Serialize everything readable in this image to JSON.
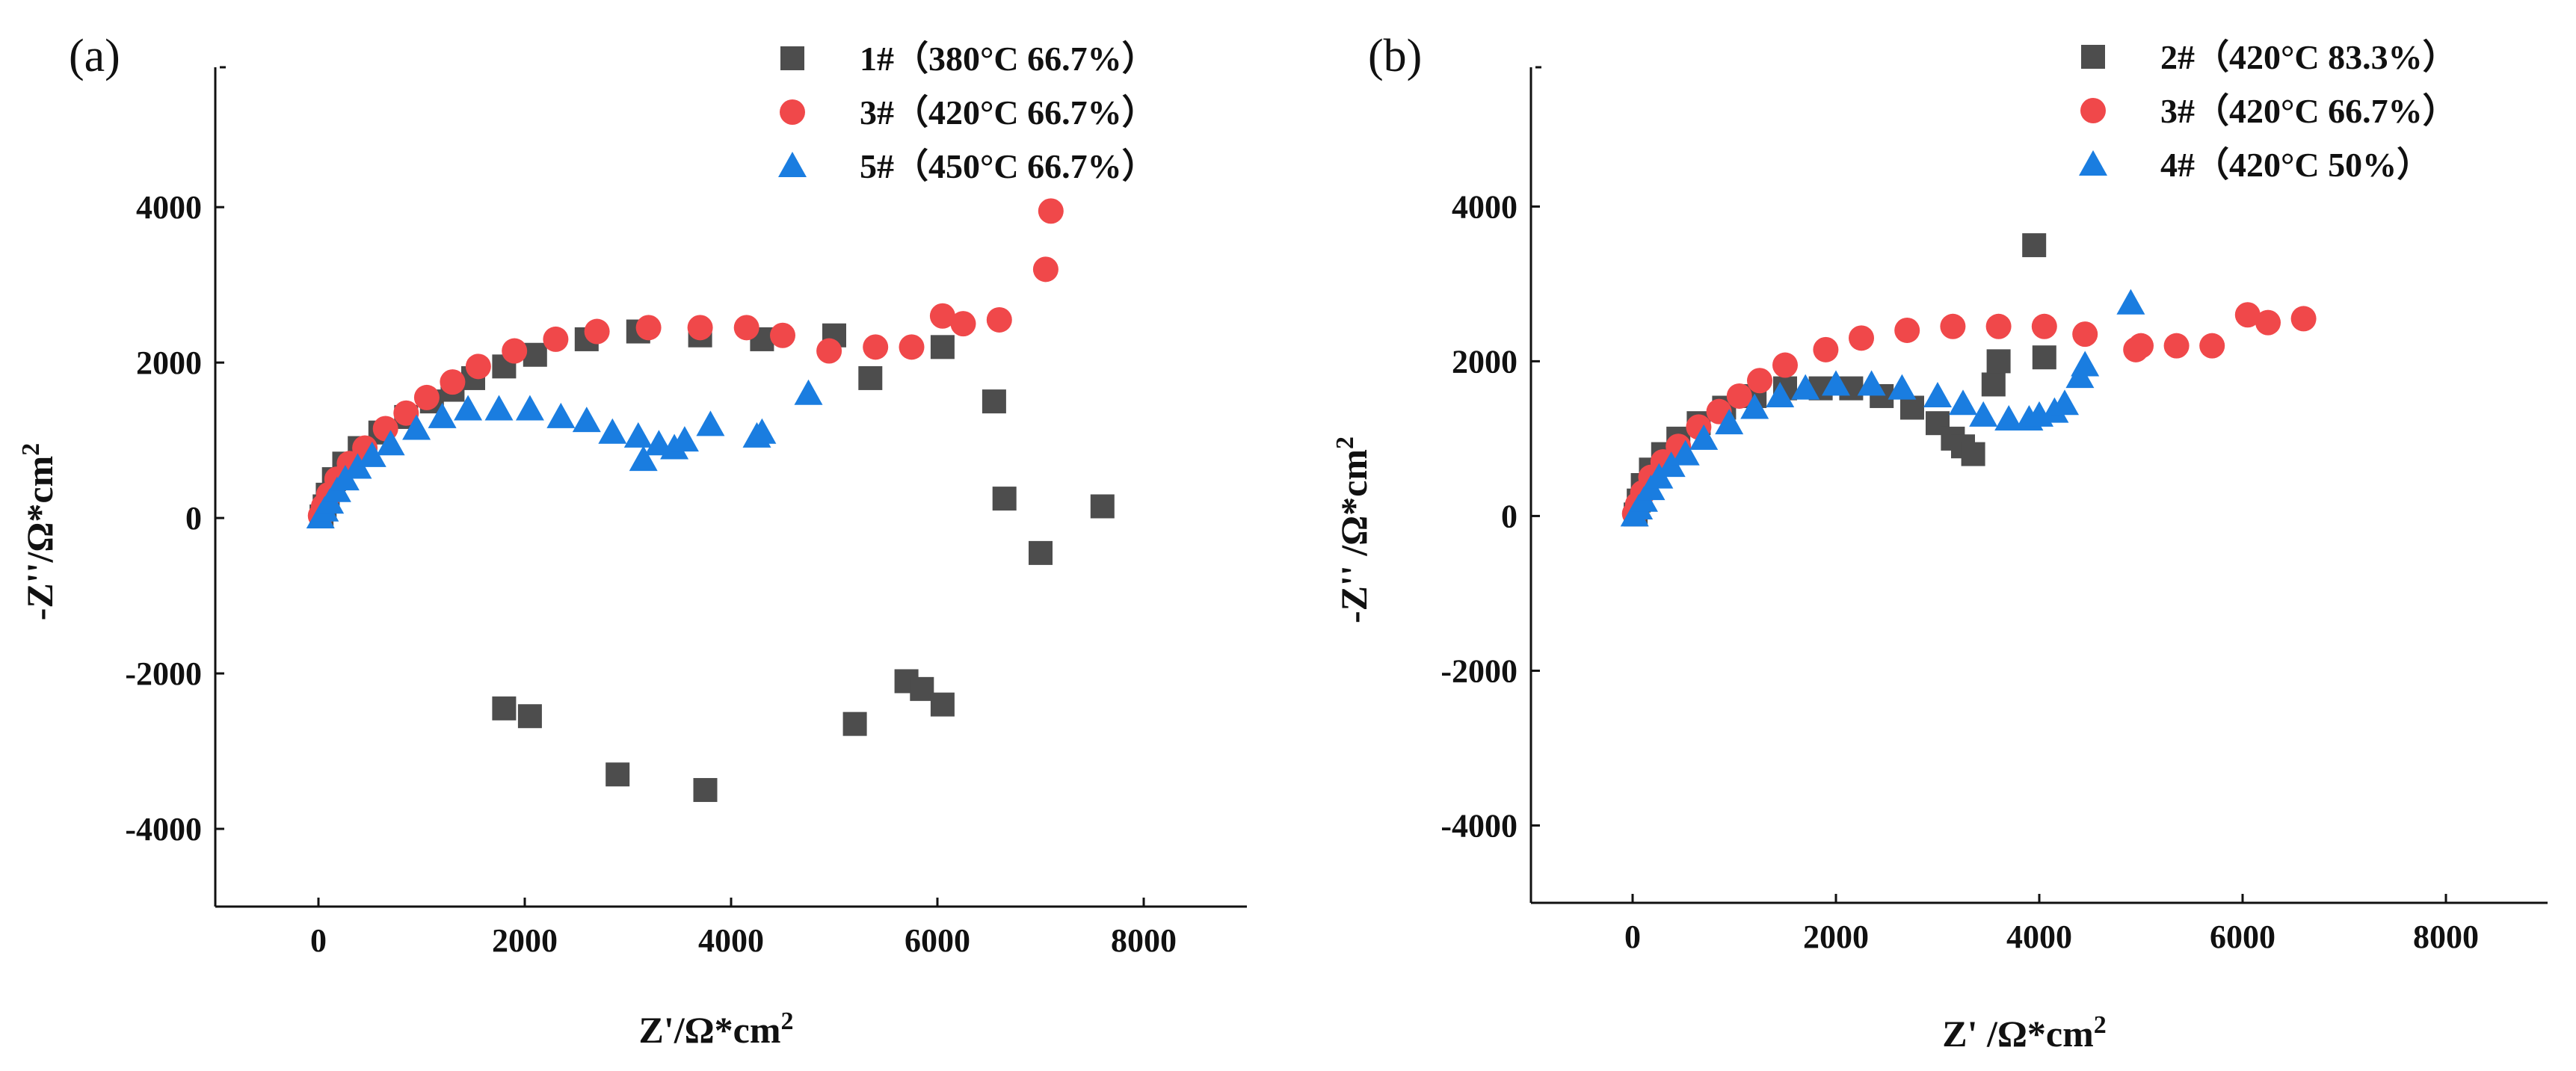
{
  "chart_data": [
    {
      "type": "scatter",
      "panel_label": "(a)",
      "xlabel": "Z'/Ω*cm²",
      "ylabel": "-Z''/Ω*cm²",
      "xlim": [
        -1000,
        9000
      ],
      "ylim": [
        -5000,
        5800
      ],
      "xticks": [
        0,
        2000,
        4000,
        6000,
        8000
      ],
      "yticks": [
        -4000,
        -2000,
        0,
        2000,
        4000
      ],
      "legend_position": "top-right",
      "grid": false,
      "series": [
        {
          "name": "1#（380°C 66.7%）",
          "marker": "square",
          "color": "#4d4d4d",
          "points": [
            [
              30,
              20
            ],
            [
              60,
              150
            ],
            [
              90,
              300
            ],
            [
              150,
              500
            ],
            [
              250,
              700
            ],
            [
              400,
              900
            ],
            [
              600,
              1100
            ],
            [
              850,
              1300
            ],
            [
              1100,
              1500
            ],
            [
              1300,
              1650
            ],
            [
              1500,
              1800
            ],
            [
              1800,
              1950
            ],
            [
              2100,
              2100
            ],
            [
              2600,
              2300
            ],
            [
              3100,
              2400
            ],
            [
              3700,
              2350
            ],
            [
              4300,
              2300
            ],
            [
              5000,
              2350
            ],
            [
              5350,
              1800
            ],
            [
              6050,
              2200
            ],
            [
              6550,
              1500
            ],
            [
              6650,
              250
            ],
            [
              7000,
              -450
            ],
            [
              7600,
              150
            ],
            [
              1800,
              -2450
            ],
            [
              2050,
              -2550
            ],
            [
              2900,
              -3300
            ],
            [
              3750,
              -3500
            ],
            [
              5200,
              -2650
            ],
            [
              5700,
              -2100
            ],
            [
              5850,
              -2200
            ],
            [
              6050,
              -2400
            ]
          ]
        },
        {
          "name": "3#（420°C 66.7%）",
          "marker": "circle",
          "color": "#f0484a",
          "points": [
            [
              20,
              30
            ],
            [
              50,
              150
            ],
            [
              100,
              300
            ],
            [
              180,
              500
            ],
            [
              300,
              700
            ],
            [
              450,
              900
            ],
            [
              650,
              1150
            ],
            [
              850,
              1350
            ],
            [
              1050,
              1550
            ],
            [
              1300,
              1750
            ],
            [
              1550,
              1950
            ],
            [
              1900,
              2150
            ],
            [
              2300,
              2300
            ],
            [
              2700,
              2400
            ],
            [
              3200,
              2450
            ],
            [
              3700,
              2450
            ],
            [
              4150,
              2450
            ],
            [
              4500,
              2350
            ],
            [
              4950,
              2150
            ],
            [
              5400,
              2200
            ],
            [
              5750,
              2200
            ],
            [
              6050,
              2600
            ],
            [
              6250,
              2500
            ],
            [
              6600,
              2550
            ],
            [
              7050,
              3200
            ],
            [
              7100,
              3950
            ]
          ]
        },
        {
          "name": "5#（450°C 66.7%）",
          "marker": "triangle",
          "color": "#1a7de0",
          "points": [
            [
              20,
              10
            ],
            [
              60,
              100
            ],
            [
              110,
              200
            ],
            [
              180,
              350
            ],
            [
              260,
              500
            ],
            [
              380,
              650
            ],
            [
              520,
              800
            ],
            [
              700,
              950
            ],
            [
              950,
              1150
            ],
            [
              1200,
              1300
            ],
            [
              1450,
              1400
            ],
            [
              1750,
              1400
            ],
            [
              2050,
              1400
            ],
            [
              2350,
              1300
            ],
            [
              2600,
              1250
            ],
            [
              2850,
              1100
            ],
            [
              3100,
              1050
            ],
            [
              3150,
              750
            ],
            [
              3300,
              950
            ],
            [
              3450,
              900
            ],
            [
              3550,
              1000
            ],
            [
              3800,
              1200
            ],
            [
              4250,
              1050
            ],
            [
              4300,
              1100
            ],
            [
              4750,
              1600
            ]
          ]
        }
      ]
    },
    {
      "type": "scatter",
      "panel_label": "(b)",
      "xlabel": "Z' /Ω*cm²",
      "ylabel": "-Z'' /Ω*cm²",
      "xlim": [
        -1000,
        9000
      ],
      "ylim": [
        -5000,
        5800
      ],
      "xticks": [
        0,
        2000,
        4000,
        6000,
        8000
      ],
      "yticks": [
        -4000,
        -2000,
        0,
        2000,
        4000
      ],
      "legend_position": "top-right",
      "grid": false,
      "series": [
        {
          "name": "2#（420°C 83.3%）",
          "marker": "square",
          "color": "#4d4d4d",
          "points": [
            [
              30,
              20
            ],
            [
              60,
              200
            ],
            [
              100,
              400
            ],
            [
              180,
              600
            ],
            [
              300,
              800
            ],
            [
              450,
              1000
            ],
            [
              650,
              1200
            ],
            [
              900,
              1400
            ],
            [
              1200,
              1550
            ],
            [
              1500,
              1650
            ],
            [
              1850,
              1650
            ],
            [
              2150,
              1650
            ],
            [
              2450,
              1550
            ],
            [
              2750,
              1400
            ],
            [
              3000,
              1200
            ],
            [
              3150,
              1000
            ],
            [
              3250,
              900
            ],
            [
              3350,
              800
            ],
            [
              3550,
              1700
            ],
            [
              3600,
              2000
            ],
            [
              3950,
              3500
            ],
            [
              4050,
              2050
            ]
          ]
        },
        {
          "name": "3#（420°C 66.7%）",
          "marker": "circle",
          "color": "#f0484a",
          "points": [
            [
              20,
              30
            ],
            [
              50,
              150
            ],
            [
              100,
              300
            ],
            [
              180,
              500
            ],
            [
              300,
              700
            ],
            [
              450,
              900
            ],
            [
              650,
              1150
            ],
            [
              850,
              1350
            ],
            [
              1050,
              1550
            ],
            [
              1250,
              1750
            ],
            [
              1500,
              1950
            ],
            [
              1900,
              2150
            ],
            [
              2250,
              2300
            ],
            [
              2700,
              2400
            ],
            [
              3150,
              2450
            ],
            [
              3600,
              2450
            ],
            [
              4050,
              2450
            ],
            [
              4450,
              2350
            ],
            [
              4950,
              2150
            ],
            [
              5000,
              2200
            ],
            [
              5350,
              2200
            ],
            [
              5700,
              2200
            ],
            [
              6050,
              2600
            ],
            [
              6250,
              2500
            ],
            [
              6600,
              2550
            ]
          ]
        },
        {
          "name": "4#（420°C 50%）",
          "marker": "triangle",
          "color": "#1a7de0",
          "points": [
            [
              20,
              10
            ],
            [
              60,
              100
            ],
            [
              110,
              200
            ],
            [
              180,
              350
            ],
            [
              260,
              500
            ],
            [
              380,
              650
            ],
            [
              520,
              800
            ],
            [
              700,
              1000
            ],
            [
              950,
              1200
            ],
            [
              1200,
              1400
            ],
            [
              1450,
              1550
            ],
            [
              1700,
              1650
            ],
            [
              2000,
              1700
            ],
            [
              2350,
              1700
            ],
            [
              2650,
              1650
            ],
            [
              3000,
              1550
            ],
            [
              3250,
              1450
            ],
            [
              3450,
              1300
            ],
            [
              3700,
              1250
            ],
            [
              3900,
              1250
            ],
            [
              4000,
              1300
            ],
            [
              4150,
              1350
            ],
            [
              4250,
              1450
            ],
            [
              4400,
              1800
            ],
            [
              4450,
              1950
            ],
            [
              4900,
              2750
            ]
          ]
        }
      ]
    }
  ]
}
